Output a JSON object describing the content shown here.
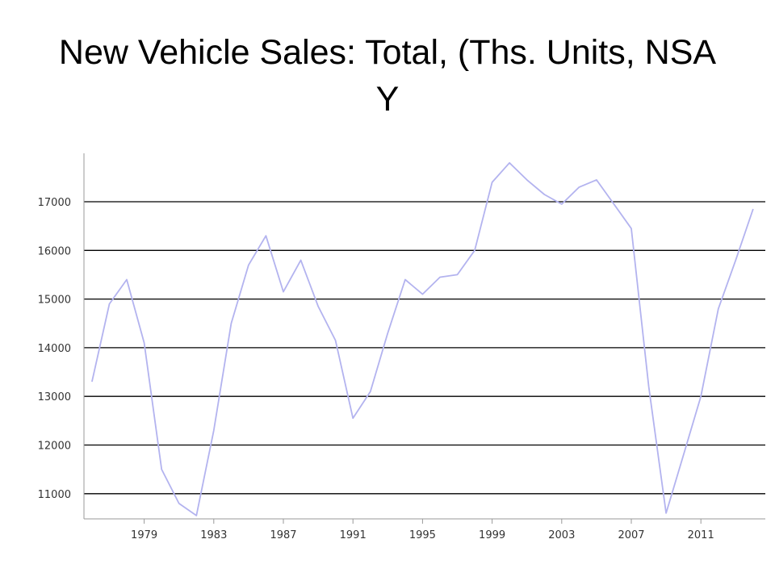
{
  "title": "New Vehicle Sales: Total, (Ths. Units, NSA Y",
  "colors": {
    "line": "#b3b3ef",
    "grid": "#000000",
    "axis": "#999999",
    "text": "#333333"
  },
  "chart_data": {
    "type": "line",
    "title": "New Vehicle Sales: Total, (Ths. Units, NSA Y",
    "xlabel": "",
    "ylabel": "",
    "grid": true,
    "legend": "none",
    "xlim": [
      1975,
      2015
    ],
    "ylim": [
      10500,
      18000
    ],
    "x_ticks": [
      1979,
      1983,
      1987,
      1991,
      1995,
      1999,
      2003,
      2007,
      2011
    ],
    "y_ticks": [
      11000,
      12000,
      13000,
      14000,
      15000,
      16000,
      17000
    ],
    "series": [
      {
        "name": "",
        "x": [
          1976,
          1977,
          1978,
          1979,
          1980,
          1981,
          1982,
          1983,
          1984,
          1985,
          1986,
          1987,
          1988,
          1989,
          1990,
          1991,
          1992,
          1993,
          1994,
          1995,
          1996,
          1997,
          1998,
          1999,
          2000,
          2001,
          2002,
          2003,
          2004,
          2005,
          2006,
          2007,
          2008,
          2009,
          2010,
          2011,
          2012,
          2013,
          2014
        ],
        "values": [
          13300,
          14900,
          15400,
          14100,
          11500,
          10800,
          10550,
          12300,
          14500,
          15700,
          16300,
          15150,
          15800,
          14850,
          14150,
          12550,
          13100,
          14300,
          15400,
          15100,
          15450,
          15500,
          16000,
          17400,
          17800,
          17450,
          17150,
          16950,
          17300,
          17450,
          16950,
          16450,
          13200,
          10600,
          11800,
          13000,
          14800,
          15800,
          16850
        ]
      }
    ]
  }
}
